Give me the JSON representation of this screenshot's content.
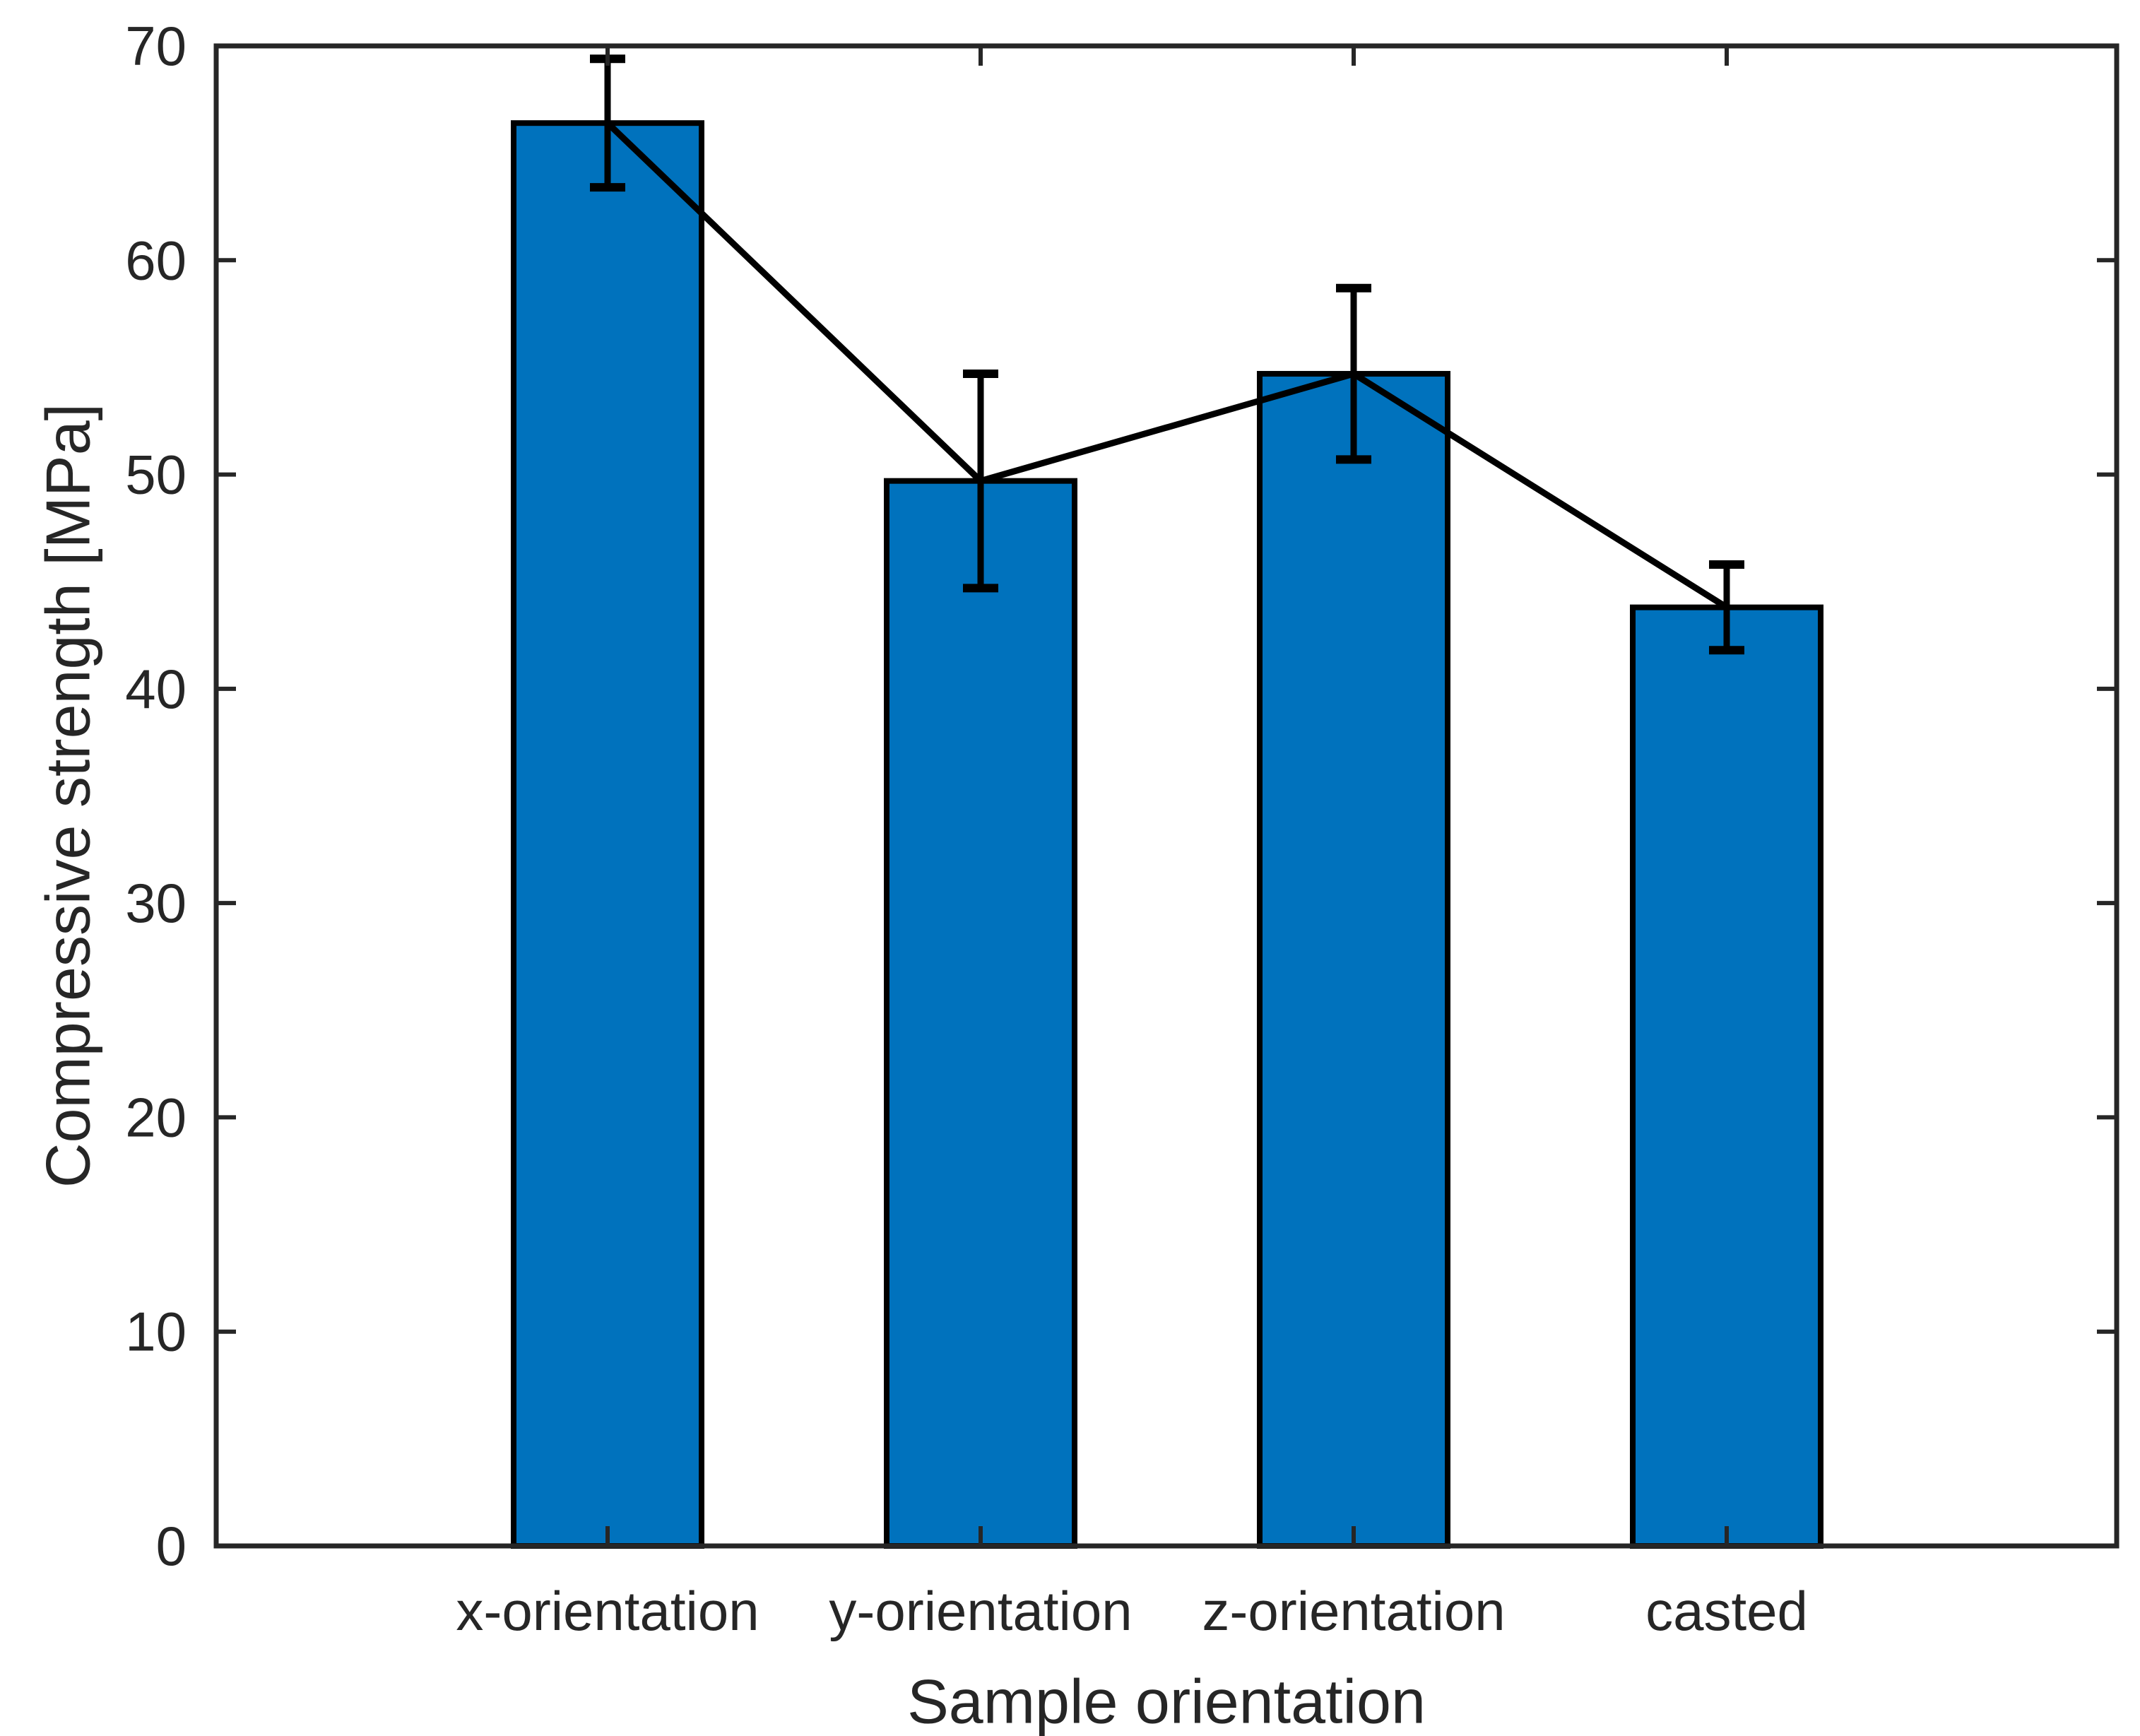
{
  "chart_data": {
    "type": "bar",
    "title": "",
    "categories": [
      "x-orientation",
      "y-orientation",
      "z-orientation",
      "casted"
    ],
    "values": [
      66.4,
      49.7,
      54.7,
      43.8
    ],
    "errors": [
      3.0,
      5.0,
      4.0,
      2.0
    ],
    "overlay_line": {
      "name": "mean-connector-line",
      "x": [
        "x-orientation",
        "y-orientation",
        "z-orientation",
        "casted"
      ],
      "values": [
        66.4,
        49.7,
        54.7,
        43.8
      ]
    },
    "xlabel": "Sample orientation",
    "ylabel": "Compressive strength [MPa]",
    "ylim": [
      0,
      70
    ],
    "yticks": [
      0,
      10,
      20,
      30,
      40,
      50,
      60,
      70
    ],
    "ytick_labels": [
      "0",
      "10",
      "20",
      "30",
      "40",
      "50",
      "60",
      "70"
    ],
    "grid": false,
    "legend": "none",
    "bar_color": "#0072BD",
    "bar_edge_color": "#000000",
    "errorbar_color": "#000000",
    "line_color": "#000000",
    "axis_color": "#262626",
    "background_color": "#FFFFFF"
  }
}
